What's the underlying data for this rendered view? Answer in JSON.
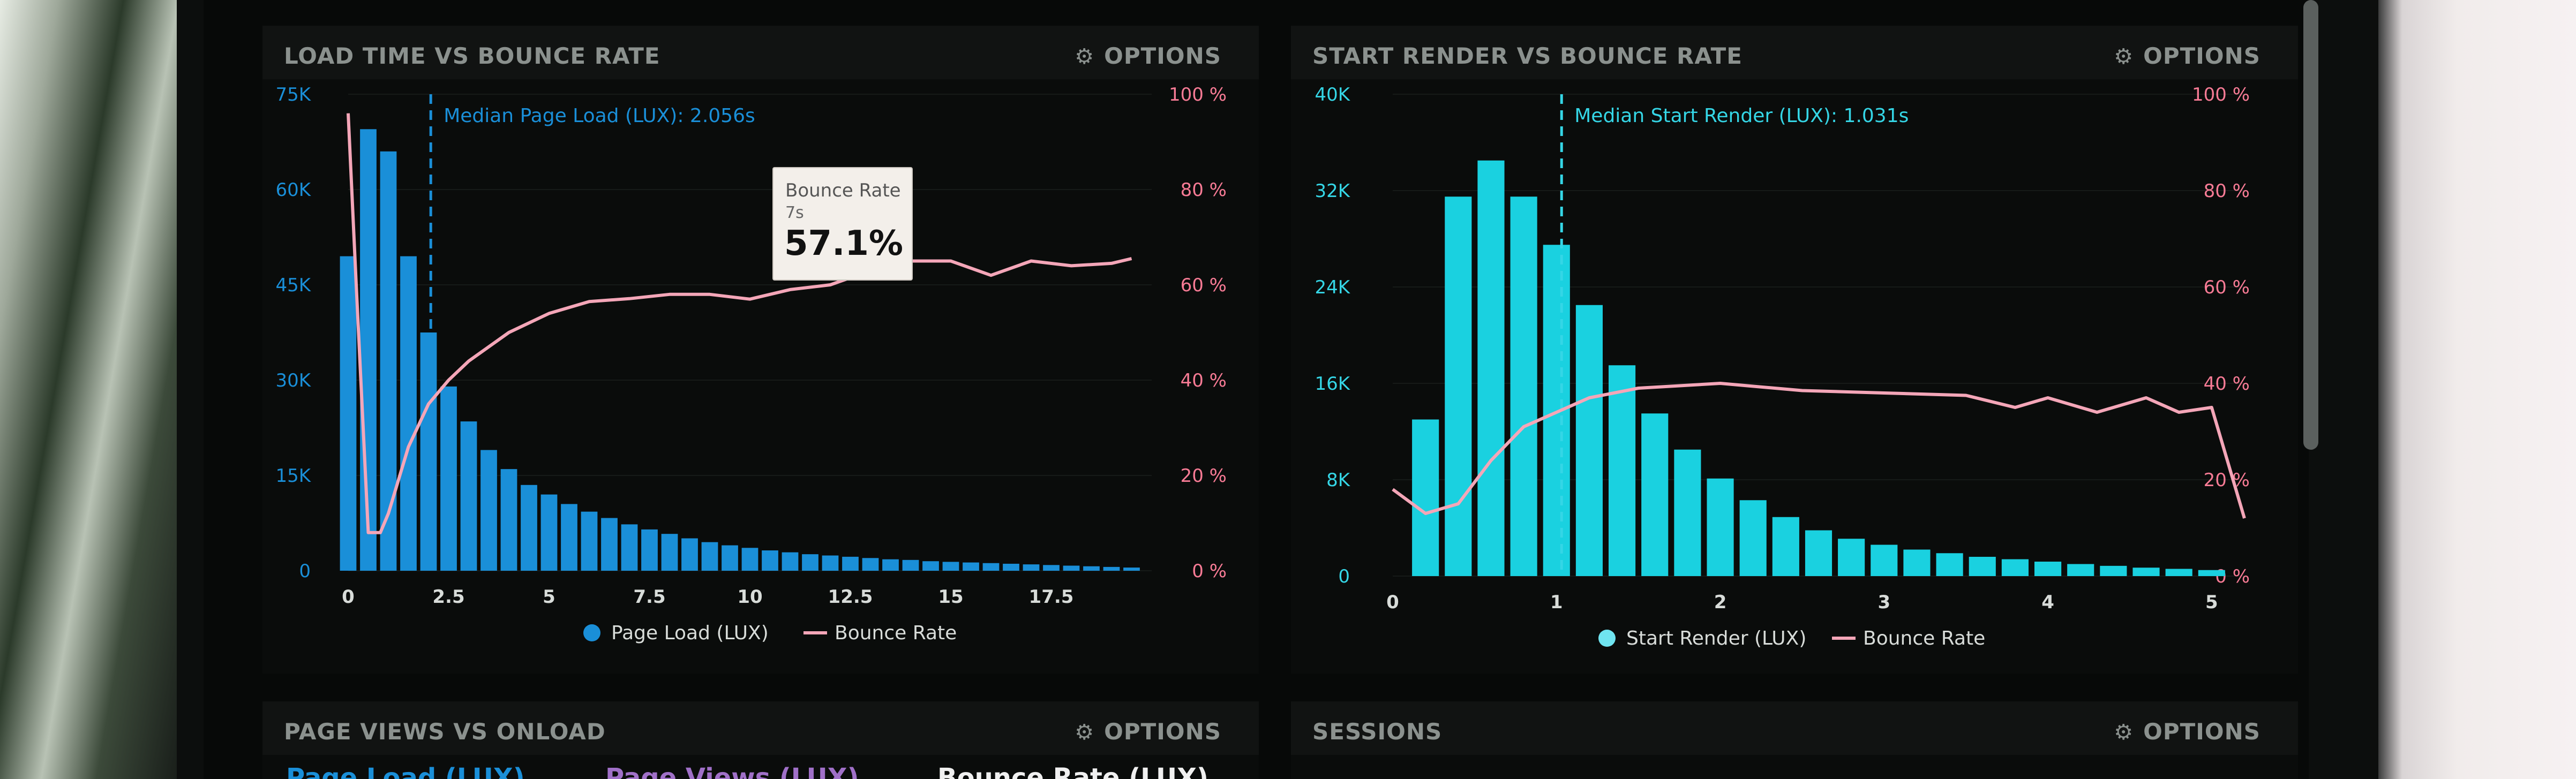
{
  "panels": [
    {
      "title": "LOAD TIME VS BOUNCE RATE",
      "options_label": "OPTIONS"
    },
    {
      "title": "START RENDER VS BOUNCE RATE",
      "options_label": "OPTIONS"
    },
    {
      "title": "PAGE VIEWS VS ONLOAD",
      "options_label": "OPTIONS"
    },
    {
      "title": "SESSIONS",
      "options_label": "OPTIONS"
    }
  ],
  "tooltip": {
    "title": "Bounce Rate",
    "sub": "7s",
    "value": "57.1%"
  },
  "bottom_left_legend": [
    "Page Load (LUX)",
    "Page Views (LUX)",
    "Bounce Rate (LUX)"
  ],
  "colors": {
    "bar1": "#1a8fd8",
    "bar2": "#1ad1e0",
    "line": "#f4a6b8",
    "axis_blue": "#1a8fd8",
    "axis_cyan": "#35d6e6",
    "axis_pink": "#f77b95"
  },
  "chart_data": [
    {
      "type": "bar",
      "title": "LOAD TIME VS BOUNCE RATE",
      "x": [
        0,
        0.5,
        1,
        1.5,
        2,
        2.5,
        3,
        3.5,
        4,
        4.5,
        5,
        5.5,
        6,
        6.5,
        7,
        7.5,
        8,
        8.5,
        9,
        9.5,
        10,
        10.5,
        11,
        11.5,
        12,
        12.5,
        13,
        13.5,
        14,
        14.5,
        15,
        15.5,
        16,
        16.5,
        17,
        17.5,
        18,
        18.5,
        19,
        19.5
      ],
      "xlim": [
        0,
        20
      ],
      "x_ticks": [
        0,
        2.5,
        5,
        7.5,
        10,
        12.5,
        15,
        17.5
      ],
      "x_tick_labels": [
        "0",
        "2.5",
        "5",
        "7.5",
        "10",
        "12.5",
        "15",
        "17.5"
      ],
      "y_ticks": [
        0,
        15000,
        30000,
        45000,
        60000,
        75000
      ],
      "y_tick_labels": [
        "0",
        "15K",
        "30K",
        "45K",
        "60K",
        "75K"
      ],
      "ylim": [
        0,
        75000
      ],
      "y2_ticks": [
        0,
        20,
        40,
        60,
        80,
        100
      ],
      "y2_tick_labels": [
        "0 %",
        "20 %",
        "40 %",
        "60 %",
        "80 %",
        "100 %"
      ],
      "y2lim": [
        0,
        100
      ],
      "median": {
        "x": 2.056,
        "label": "Median Page Load (LUX): 2.056s"
      },
      "series": [
        {
          "name": "Page Load (LUX)",
          "kind": "bar",
          "values": [
            49500,
            69500,
            66000,
            49500,
            37500,
            29000,
            23500,
            19000,
            16000,
            13500,
            12000,
            10500,
            9300,
            8300,
            7300,
            6500,
            5800,
            5100,
            4500,
            4000,
            3600,
            3200,
            2900,
            2600,
            2400,
            2200,
            2000,
            1800,
            1700,
            1500,
            1400,
            1300,
            1200,
            1100,
            1000,
            900,
            800,
            700,
            600,
            500
          ]
        },
        {
          "name": "Bounce Rate",
          "kind": "line",
          "axis": "right",
          "points": [
            [
              0,
              96
            ],
            [
              0.2,
              60
            ],
            [
              0.5,
              8
            ],
            [
              0.8,
              8
            ],
            [
              1,
              12
            ],
            [
              1.5,
              26
            ],
            [
              2,
              35
            ],
            [
              2.5,
              40
            ],
            [
              3,
              44
            ],
            [
              4,
              50
            ],
            [
              5,
              54
            ],
            [
              6,
              56.5
            ],
            [
              7,
              57.1
            ],
            [
              8,
              58
            ],
            [
              9,
              58
            ],
            [
              10,
              57
            ],
            [
              11,
              59
            ],
            [
              12,
              60
            ],
            [
              13,
              63
            ],
            [
              14,
              65
            ],
            [
              15,
              65
            ],
            [
              16,
              62
            ],
            [
              17,
              65
            ],
            [
              18,
              64
            ],
            [
              19,
              64.5
            ],
            [
              19.5,
              65.5
            ]
          ]
        }
      ],
      "legend": [
        "Page Load (LUX)",
        "Bounce Rate"
      ]
    },
    {
      "type": "bar",
      "title": "START RENDER VS BOUNCE RATE",
      "x": [
        0.2,
        0.4,
        0.6,
        0.8,
        1.0,
        1.2,
        1.4,
        1.6,
        1.8,
        2.0,
        2.2,
        2.4,
        2.6,
        2.8,
        3.0,
        3.2,
        3.4,
        3.6,
        3.8,
        4.0,
        4.2,
        4.4,
        4.6,
        4.8,
        5.0
      ],
      "xlim": [
        0,
        5.2
      ],
      "x_ticks": [
        0,
        1,
        2,
        3,
        4,
        5
      ],
      "x_tick_labels": [
        "0",
        "1",
        "2",
        "3",
        "4",
        "5"
      ],
      "y_ticks": [
        0,
        8000,
        16000,
        24000,
        32000,
        40000
      ],
      "y_tick_labels": [
        "0",
        "8K",
        "16K",
        "24K",
        "32K",
        "40K"
      ],
      "ylim": [
        0,
        40000
      ],
      "y2_ticks": [
        0,
        20,
        40,
        60,
        80,
        100
      ],
      "y2_tick_labels": [
        "0 %",
        "20 %",
        "40 %",
        "60 %",
        "80 %",
        "100 %"
      ],
      "y2lim": [
        0,
        100
      ],
      "median": {
        "x": 1.031,
        "label": "Median Start Render (LUX): 1.031s"
      },
      "series": [
        {
          "name": "Start Render (LUX)",
          "kind": "bar",
          "values": [
            13000,
            31500,
            34500,
            31500,
            27500,
            22500,
            17500,
            13500,
            10500,
            8100,
            6300,
            4900,
            3800,
            3100,
            2600,
            2200,
            1900,
            1600,
            1400,
            1200,
            1000,
            850,
            700,
            600,
            500
          ]
        },
        {
          "name": "Bounce Rate",
          "kind": "line",
          "axis": "right",
          "points": [
            [
              0,
              18
            ],
            [
              0.2,
              13
            ],
            [
              0.4,
              15
            ],
            [
              0.6,
              24
            ],
            [
              0.8,
              31
            ],
            [
              1,
              34
            ],
            [
              1.2,
              37
            ],
            [
              1.5,
              39
            ],
            [
              2,
              40
            ],
            [
              2.5,
              38.5
            ],
            [
              3,
              38
            ],
            [
              3.5,
              37.5
            ],
            [
              3.8,
              35
            ],
            [
              4,
              37
            ],
            [
              4.3,
              34
            ],
            [
              4.6,
              37
            ],
            [
              4.8,
              34
            ],
            [
              5,
              35
            ],
            [
              5.2,
              12
            ]
          ]
        }
      ],
      "legend": [
        "Start Render (LUX)",
        "Bounce Rate"
      ]
    }
  ]
}
